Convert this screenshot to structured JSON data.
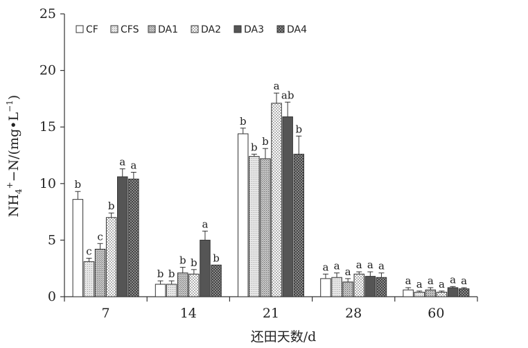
{
  "chart_data": {
    "type": "bar",
    "categories": [
      "7",
      "14",
      "21",
      "28",
      "60"
    ],
    "xlabel": "还田天数/d",
    "ylabel": "NH4+-N/(mg·L-1)",
    "ylabel_parts": {
      "base": "NH",
      "sub": "4",
      "sup": "+",
      "mid": "−N/(mg•L",
      "sup2": "−1",
      "end": ")"
    },
    "ylim": [
      0,
      25
    ],
    "yticks": [
      "0",
      "5",
      "10",
      "15",
      "20",
      "25"
    ],
    "legend_position": "top-left",
    "grid": false,
    "series": [
      {
        "name": "CF",
        "pattern": "white",
        "values": [
          8.6,
          1.1,
          14.4,
          1.6,
          0.6
        ],
        "errors": [
          0.7,
          0.3,
          0.5,
          0.4,
          0.2
        ],
        "labels": [
          "b",
          "b",
          "b",
          "a",
          "a"
        ]
      },
      {
        "name": "CFS",
        "pattern": "light",
        "values": [
          3.1,
          1.1,
          12.4,
          1.7,
          0.4
        ],
        "errors": [
          0.3,
          0.3,
          0.2,
          0.4,
          0.1
        ],
        "labels": [
          "c",
          "b",
          "b",
          "a",
          "a"
        ]
      },
      {
        "name": "DA1",
        "pattern": "medium",
        "values": [
          4.2,
          2.1,
          12.2,
          1.3,
          0.6
        ],
        "errors": [
          0.5,
          0.5,
          0.9,
          0.3,
          0.2
        ],
        "labels": [
          "c",
          "b",
          "b",
          "a",
          "a"
        ]
      },
      {
        "name": "DA2",
        "pattern": "dotted",
        "values": [
          7.0,
          2.0,
          17.1,
          2.0,
          0.4
        ],
        "errors": [
          0.4,
          0.4,
          0.9,
          0.2,
          0.1
        ],
        "labels": [
          "b",
          "b",
          "a",
          "a",
          "a"
        ]
      },
      {
        "name": "DA3",
        "pattern": "dark",
        "values": [
          10.6,
          5.0,
          15.9,
          1.8,
          0.8
        ],
        "errors": [
          0.7,
          0.8,
          1.3,
          0.4,
          0.1
        ],
        "labels": [
          "a",
          "a",
          "ab",
          "a",
          "a"
        ]
      },
      {
        "name": "DA4",
        "pattern": "hatch",
        "values": [
          10.4,
          2.8,
          12.6,
          1.7,
          0.7
        ],
        "errors": [
          0.6,
          0.0,
          1.6,
          0.4,
          0.1
        ],
        "labels": [
          "a",
          "b",
          "b",
          "a",
          "a"
        ]
      }
    ]
  }
}
